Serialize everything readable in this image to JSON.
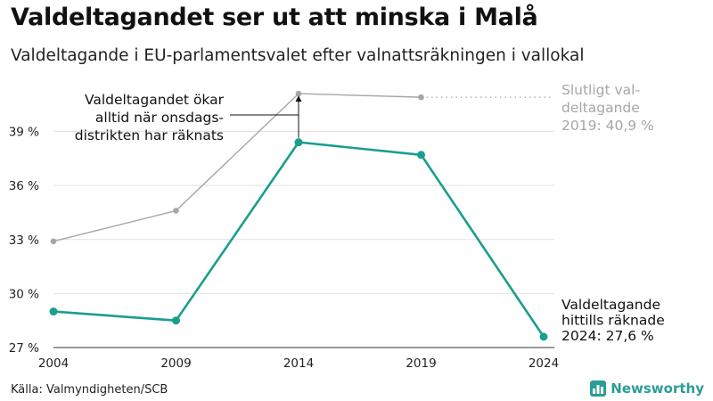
{
  "title": "Valdeltagandet ser ut att minska i Malå",
  "subtitle": "Valdeltagande i EU-parlamentsvalet efter valnattsräkningen i vallokal",
  "source": "Källa: Valmyndigheten/SCB",
  "logo": {
    "text": "Newsworthy",
    "icon": "bar-chart-icon"
  },
  "colors": {
    "main": "#1a9e8f",
    "final": "#a6a6a6",
    "grid": "#e2e2e2",
    "brand": "#2a9d95"
  },
  "chart_data": {
    "type": "line",
    "x": [
      2004,
      2009,
      2014,
      2019,
      2024
    ],
    "xlim": [
      2004,
      2024
    ],
    "ylim": [
      27,
      41.5
    ],
    "yticks": [
      27,
      30,
      33,
      36,
      39
    ],
    "ytick_labels": [
      "27 %",
      "30 %",
      "33 %",
      "36 %",
      "39 %"
    ],
    "xtick_labels": [
      "2004",
      "2009",
      "2014",
      "2019",
      "2024"
    ],
    "grid": true,
    "series": [
      {
        "key": "final",
        "values": [
          32.9,
          34.6,
          41.1,
          40.9,
          null
        ]
      },
      {
        "key": "main",
        "values": [
          29.0,
          28.5,
          38.4,
          37.7,
          27.6
        ]
      }
    ],
    "annotations": {
      "difference": {
        "lines": [
          "Valdeltagandet ökar",
          "alltid när onsdags-",
          "distrikten har räknats"
        ]
      },
      "final_label": {
        "lines": [
          "Slutligt val-",
          "deltagande",
          "2019: 40,9 %"
        ]
      },
      "main_label": {
        "lines": [
          "Valdeltagande",
          "hittills räknade",
          "2024: 27,6 %"
        ]
      }
    }
  }
}
